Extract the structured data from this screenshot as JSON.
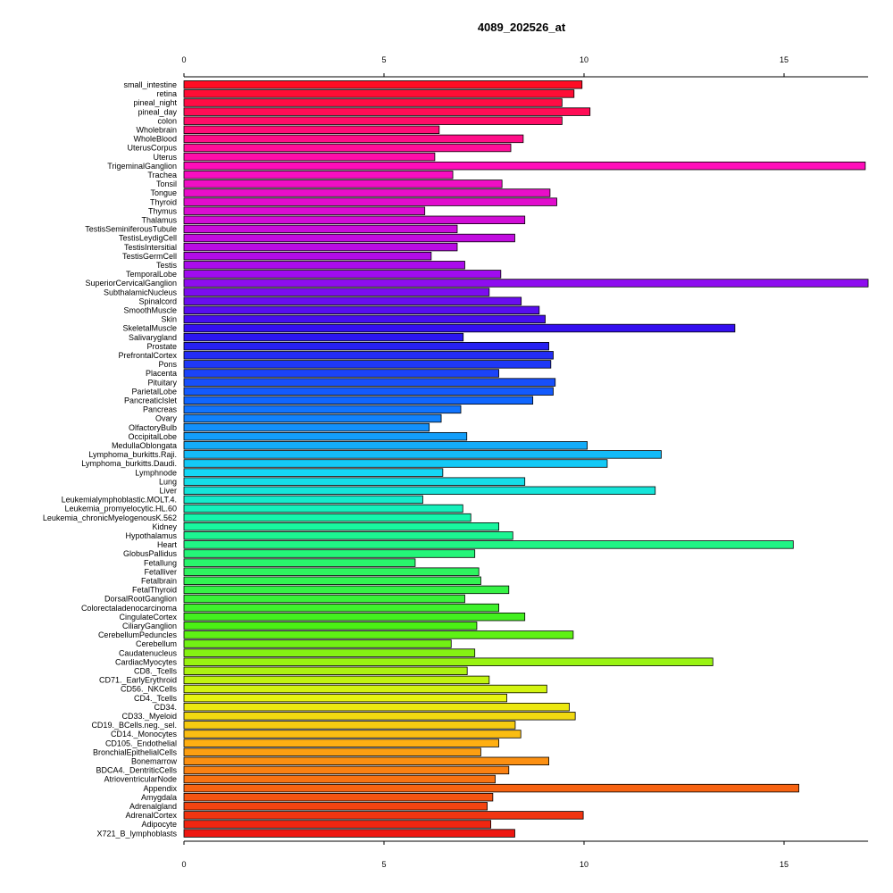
{
  "chart_data": {
    "type": "bar",
    "orientation": "horizontal",
    "title": "4089_202526_at",
    "xlabel": "",
    "ylabel": "",
    "xlim": [
      0,
      17.1
    ],
    "ticks": [
      0,
      5,
      10,
      15
    ],
    "tick_labels": [
      "0",
      "5",
      "10",
      "15"
    ],
    "grid": false,
    "colors": "rainbow (red to magenta to blue to cyan to green to yellow to orange to red)",
    "categories": [
      "small_intestine",
      "retina",
      "pineal_night",
      "pineal_day",
      "colon",
      "Wholebrain",
      "WholeBlood",
      "UterusCorpus",
      "Uterus",
      "TrigeminalGanglion",
      "Trachea",
      "Tonsil",
      "Tongue",
      "Thyroid",
      "Thymus",
      "Thalamus",
      "TestisSeminiferousTubule",
      "TestisLeydigCell",
      "TestisIntersitial",
      "TestisGermCell",
      "Testis",
      "TemporalLobe",
      "SuperiorCervicalGanglion",
      "SubthalamicNucleus",
      "Spinalcord",
      "SmoothMuscle",
      "Skin",
      "SkeletalMuscle",
      "Salivarygland",
      "Prostate",
      "PrefrontalCortex",
      "Pons",
      "Placenta",
      "Pituitary",
      "ParietalLobe",
      "PancreaticIslet",
      "Pancreas",
      "Ovary",
      "OlfactoryBulb",
      "OccipitalLobe",
      "MedullaOblongata",
      "Lymphoma_burkitts.Raji.",
      "Lymphoma_burkitts.Daudi.",
      "Lymphnode",
      "Lung",
      "Liver",
      "Leukemialymphoblastic.MOLT.4.",
      "Leukemia_promyelocytic.HL.60",
      "Leukemia_chronicMyelogenousK.562",
      "Kidney",
      "Hypothalamus",
      "Heart",
      "GlobusPallidus",
      "Fetallung",
      "Fetalliver",
      "Fetalbrain",
      "FetalThyroid",
      "DorsalRootGanglion",
      "Colorectaladenocarcinoma",
      "CingulateCortex",
      "CiliaryGanglion",
      "CerebellumPeduncles",
      "Cerebellum",
      "Caudatenucleus",
      "CardiacMyocytes",
      "CD8._Tcells",
      "CD71._EarlyErythroid",
      "CD56._NKCells",
      "CD4._Tcells",
      "CD34.",
      "CD33._Myeloid",
      "CD19._BCells.neg._sel.",
      "CD14._Monocytes",
      "CD105._Endothelial",
      "BronchialEpithelialCells",
      "Bonemarrow",
      "BDCA4._DentriticCells",
      "AtrioventricularNode",
      "Appendix",
      "Amygdala",
      "Adrenalgland",
      "AdrenalCortex",
      "Adipocyte",
      "X721_B_lymphoblasts"
    ],
    "values": [
      9.95,
      9.75,
      9.45,
      10.15,
      9.45,
      6.38,
      8.48,
      8.17,
      6.27,
      17.03,
      6.72,
      7.95,
      9.15,
      9.32,
      6.02,
      8.52,
      6.83,
      8.27,
      6.83,
      6.18,
      7.02,
      7.92,
      17.1,
      7.63,
      8.43,
      8.88,
      9.03,
      13.77,
      6.98,
      9.12,
      9.23,
      9.17,
      7.87,
      9.28,
      9.23,
      8.72,
      6.92,
      6.43,
      6.13,
      7.07,
      10.08,
      11.93,
      10.58,
      6.47,
      8.52,
      11.78,
      5.97,
      6.97,
      7.17,
      7.87,
      8.22,
      15.23,
      7.27,
      5.78,
      7.37,
      7.42,
      8.12,
      7.02,
      7.87,
      8.52,
      7.32,
      9.73,
      6.68,
      7.27,
      13.22,
      7.08,
      7.63,
      9.07,
      8.07,
      9.63,
      9.78,
      8.28,
      8.42,
      7.87,
      7.42,
      9.12,
      8.12,
      7.78,
      15.37,
      7.72,
      7.58,
      9.98,
      7.67,
      8.27
    ]
  }
}
